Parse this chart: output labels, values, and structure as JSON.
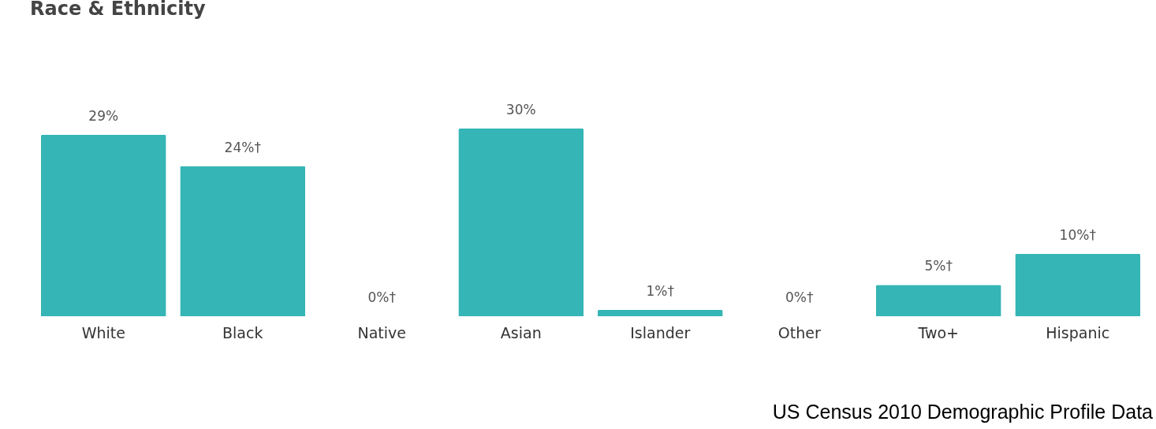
{
  "chart_data": {
    "type": "bar",
    "title": "Race & Ethnicity",
    "categories": [
      "White",
      "Black",
      "Native",
      "Asian",
      "Islander",
      "Other",
      "Two+",
      "Hispanic"
    ],
    "values": [
      29,
      24,
      0,
      30,
      1,
      0,
      5,
      10
    ],
    "value_labels": [
      "29%",
      "24%†",
      "0%†",
      "30%",
      "1%†",
      "0%†",
      "5%†",
      "10%†"
    ],
    "color": "#35b5b5",
    "annotations": [
      "US Census 2010 Demographic Profile Data"
    ]
  }
}
